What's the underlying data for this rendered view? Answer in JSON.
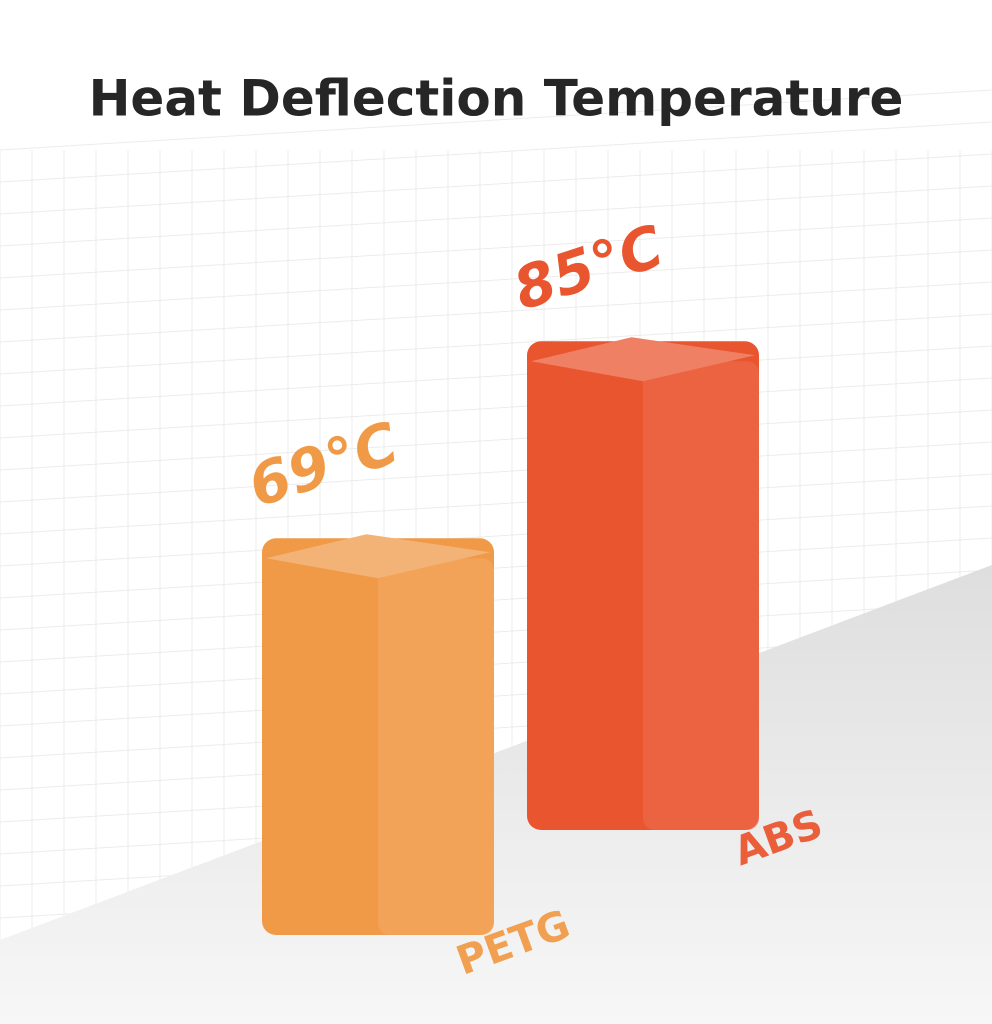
{
  "chart_data": {
    "type": "bar",
    "title": "Heat Deflection Temperature",
    "categories": [
      "PETG",
      "ABS"
    ],
    "values": [
      69,
      85
    ],
    "value_labels": [
      "69°C",
      "85°C"
    ],
    "colors": [
      "#f09a48",
      "#e9552f"
    ]
  }
}
